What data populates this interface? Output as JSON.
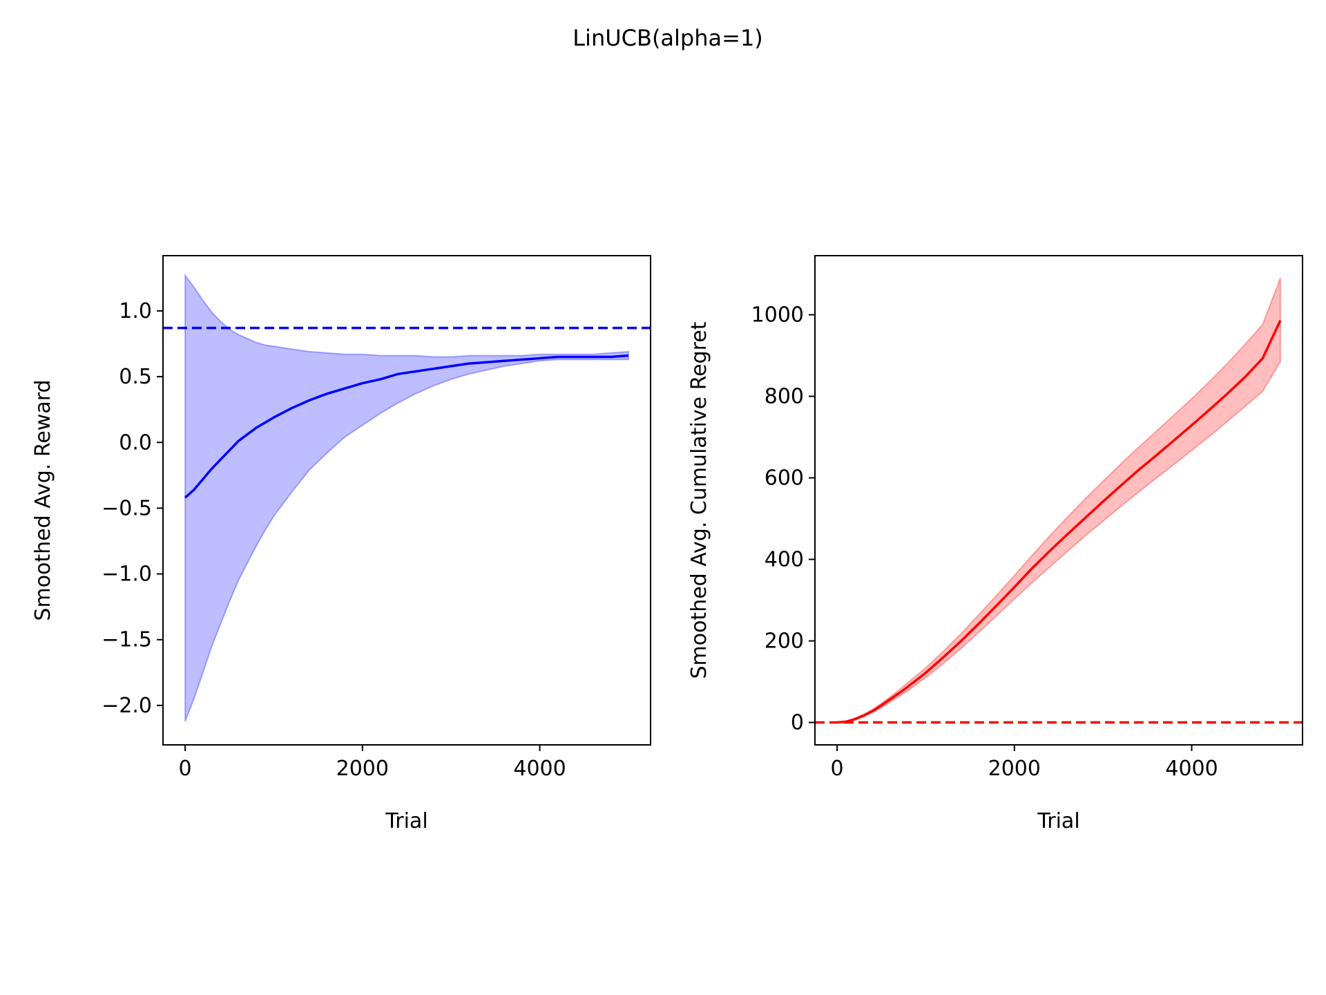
{
  "suptitle": "LinUCB(alpha=1)",
  "chart_data": [
    {
      "type": "line",
      "title": "",
      "xlabel": "Trial",
      "ylabel": "Smoothed Avg. Reward",
      "xlim": [
        -250,
        5250
      ],
      "ylim": [
        -2.3,
        1.42
      ],
      "xticks": [
        0,
        2000,
        4000
      ],
      "xtick_labels": [
        "0",
        "2000",
        "4000"
      ],
      "yticks": [
        -2.0,
        -1.5,
        -1.0,
        -0.5,
        0.0,
        0.5,
        1.0
      ],
      "ytick_labels": [
        "−2.0",
        "−1.5",
        "−1.0",
        "−0.5",
        "0.0",
        "0.5",
        "1.0"
      ],
      "grid": false,
      "colors": {
        "line": "#0000ff",
        "band": "#0000ff",
        "reference": "#0000ff"
      },
      "reference_line": {
        "y": 0.87,
        "style": "dashed"
      },
      "series": [
        {
          "x": [
            0,
            100,
            200,
            300,
            400,
            500,
            600,
            700,
            800,
            900,
            1000,
            1200,
            1400,
            1600,
            1800,
            2000,
            2200,
            2400,
            2600,
            2800,
            3000,
            3200,
            3400,
            3600,
            3800,
            4000,
            4200,
            4400,
            4600,
            4800,
            5000
          ],
          "mean": [
            -0.42,
            -0.36,
            -0.28,
            -0.2,
            -0.13,
            -0.06,
            0.01,
            0.06,
            0.11,
            0.15,
            0.19,
            0.26,
            0.32,
            0.37,
            0.41,
            0.45,
            0.48,
            0.52,
            0.54,
            0.56,
            0.58,
            0.6,
            0.61,
            0.62,
            0.63,
            0.64,
            0.65,
            0.65,
            0.65,
            0.65,
            0.66
          ],
          "lower": [
            -2.12,
            -1.95,
            -1.75,
            -1.55,
            -1.38,
            -1.21,
            -1.05,
            -0.92,
            -0.79,
            -0.67,
            -0.56,
            -0.38,
            -0.21,
            -0.08,
            0.04,
            0.13,
            0.22,
            0.3,
            0.37,
            0.43,
            0.48,
            0.52,
            0.55,
            0.58,
            0.6,
            0.62,
            0.63,
            0.63,
            0.63,
            0.63,
            0.63
          ],
          "upper": [
            1.27,
            1.18,
            1.08,
            0.99,
            0.92,
            0.86,
            0.82,
            0.79,
            0.76,
            0.74,
            0.73,
            0.71,
            0.69,
            0.68,
            0.67,
            0.67,
            0.66,
            0.66,
            0.66,
            0.65,
            0.65,
            0.66,
            0.66,
            0.66,
            0.66,
            0.67,
            0.67,
            0.67,
            0.67,
            0.68,
            0.69
          ]
        }
      ]
    },
    {
      "type": "line",
      "title": "",
      "xlabel": "Trial",
      "ylabel": "Smoothed Avg. Cumulative Regret",
      "xlim": [
        -250,
        5250
      ],
      "ylim": [
        -55,
        1145
      ],
      "xticks": [
        0,
        2000,
        4000
      ],
      "xtick_labels": [
        "0",
        "2000",
        "4000"
      ],
      "yticks": [
        0,
        200,
        400,
        600,
        800,
        1000
      ],
      "ytick_labels": [
        "0",
        "200",
        "400",
        "600",
        "800",
        "1000"
      ],
      "grid": false,
      "colors": {
        "line": "#ff0000",
        "band": "#ff0000",
        "reference": "#ff0000"
      },
      "reference_line": {
        "y": 0,
        "style": "dashed"
      },
      "series": [
        {
          "x": [
            0,
            100,
            200,
            300,
            400,
            500,
            600,
            700,
            800,
            1000,
            1200,
            1400,
            1600,
            1800,
            2000,
            2200,
            2400,
            2600,
            2800,
            3000,
            3200,
            3400,
            3600,
            3800,
            4000,
            4200,
            4400,
            4600,
            4800,
            5000
          ],
          "mean": [
            0,
            2,
            8,
            17,
            28,
            42,
            57,
            72,
            88,
            122,
            160,
            200,
            243,
            287,
            332,
            378,
            421,
            462,
            502,
            542,
            581,
            619,
            655,
            692,
            729,
            767,
            806,
            847,
            893,
            986
          ],
          "lower": [
            0,
            1,
            6,
            14,
            24,
            36,
            50,
            64,
            78,
            110,
            145,
            182,
            222,
            262,
            303,
            343,
            382,
            420,
            458,
            494,
            530,
            565,
            599,
            633,
            667,
            702,
            738,
            775,
            812,
            885
          ],
          "upper": [
            0,
            3,
            10,
            20,
            32,
            47,
            63,
            80,
            98,
            134,
            175,
            218,
            265,
            312,
            360,
            410,
            458,
            504,
            549,
            592,
            634,
            675,
            714,
            754,
            794,
            836,
            880,
            927,
            976,
            1090
          ]
        }
      ]
    }
  ]
}
